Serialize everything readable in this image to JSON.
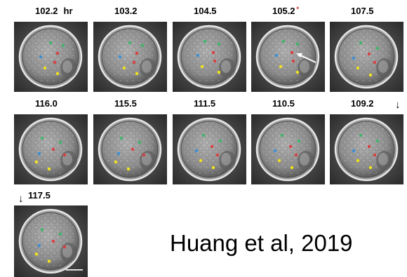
{
  "timepoints": [
    {
      "label": "102.2",
      "unit": "hr",
      "asterisk": false,
      "row": 1,
      "dots": "a"
    },
    {
      "label": "103.2",
      "unit": "",
      "asterisk": false,
      "row": 1,
      "dots": "a"
    },
    {
      "label": "104.5",
      "unit": "",
      "asterisk": false,
      "row": 1,
      "dots": "b"
    },
    {
      "label": "105.2",
      "unit": "",
      "asterisk": true,
      "row": 1,
      "dots": "b",
      "white_arrow": true
    },
    {
      "label": "107.5",
      "unit": "",
      "asterisk": false,
      "row": 1,
      "dots": "c"
    },
    {
      "label": "116.0",
      "unit": "",
      "asterisk": false,
      "row": 2,
      "dots": "d"
    },
    {
      "label": "115.5",
      "unit": "",
      "asterisk": false,
      "row": 2,
      "dots": "d"
    },
    {
      "label": "111.5",
      "unit": "",
      "asterisk": false,
      "row": 2,
      "dots": "c"
    },
    {
      "label": "110.5",
      "unit": "",
      "asterisk": false,
      "row": 2,
      "dots": "c"
    },
    {
      "label": "109.2",
      "unit": "",
      "asterisk": false,
      "row": 2,
      "dots": "c"
    },
    {
      "label": "117.5",
      "unit": "",
      "asterisk": false,
      "row": 3,
      "dots": "d",
      "scale_bar": true
    }
  ],
  "arrow_glyph": "↓",
  "citation": "Huang et al, 2019",
  "colors": {
    "cell_green": "#3fb56a",
    "cell_red": "#d94040",
    "cell_blue": "#3b8fd6",
    "cell_yellow": "#f2e31c",
    "asterisk": "#e02020"
  }
}
